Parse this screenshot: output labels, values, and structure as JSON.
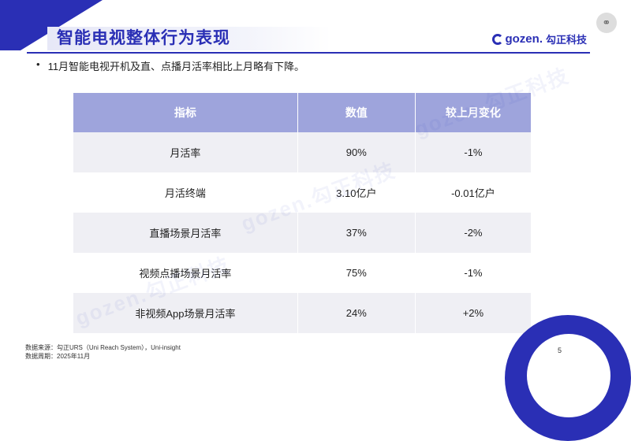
{
  "header": {
    "title": "智能电视整体行为表现",
    "logo_text": "gozen.",
    "logo_cn": "勾正科技"
  },
  "bullet": {
    "text": "11月智能电视开机及直、点播月活率相比上月略有下降。"
  },
  "table": {
    "headers": [
      "指标",
      "数值",
      "较上月变化"
    ],
    "rows": [
      {
        "metric": "月活率",
        "value": "90%",
        "change": "-1%"
      },
      {
        "metric": "月活终端",
        "value": "3.10亿户",
        "change": "-0.01亿户"
      },
      {
        "metric": "直播场景月活率",
        "value": "37%",
        "change": "-2%"
      },
      {
        "metric": "视频点播场景月活率",
        "value": "75%",
        "change": "-1%"
      },
      {
        "metric": "非视频App场景月活率",
        "value": "24%",
        "change": "+2%"
      }
    ]
  },
  "footer": {
    "source": "数据来源：勾正URS（Uni Reach System），Uni-insight",
    "period": "数据周期：2025年11月",
    "page": "5"
  },
  "watermark": "gozen.勾正科技",
  "colors": {
    "brand": "#2a2fb5",
    "header_row": "#9ea4dc",
    "stripe": "#efeff4"
  }
}
